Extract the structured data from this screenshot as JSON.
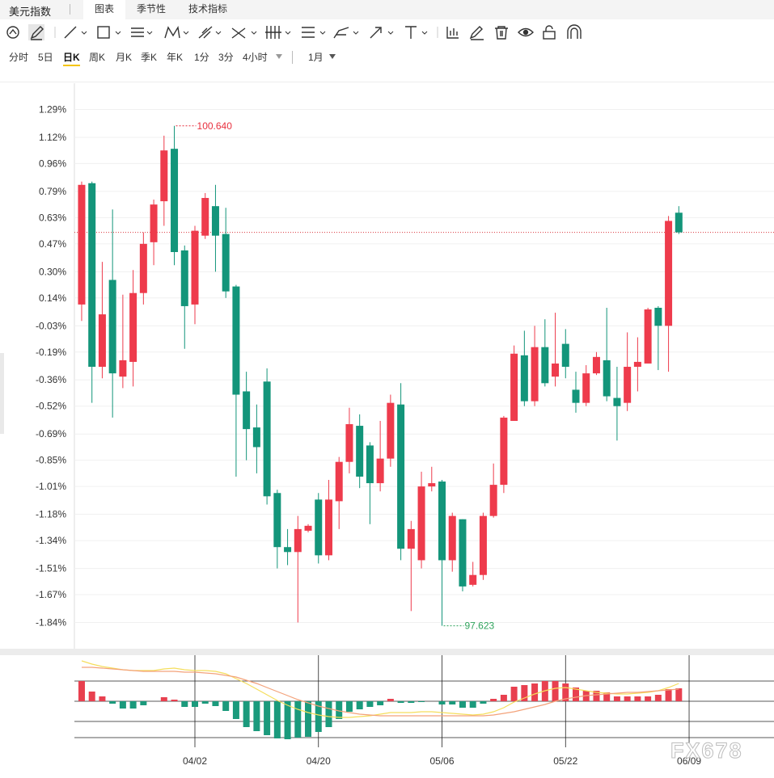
{
  "tabs": {
    "title": "美元指数",
    "items": [
      "图表",
      "季节性",
      "技术指标"
    ],
    "active": 0
  },
  "periods": {
    "items": [
      "分时",
      "5日",
      "日K",
      "周K",
      "月K",
      "季K",
      "年K",
      "1分",
      "3分",
      "4小时"
    ],
    "active": 2,
    "range": "1月"
  },
  "watermark": "FX678",
  "chart_data": [
    {
      "type": "candlestick",
      "categories": [
        null,
        null,
        null,
        null,
        null,
        null,
        null,
        null,
        null,
        null,
        null,
        "04/02",
        null,
        null,
        null,
        null,
        null,
        null,
        null,
        null,
        null,
        null,
        null,
        "04/20",
        null,
        null,
        null,
        null,
        null,
        null,
        null,
        null,
        null,
        null,
        null,
        "05/06",
        null,
        null,
        null,
        null,
        null,
        null,
        null,
        null,
        null,
        null,
        null,
        "05/22",
        null,
        null,
        null,
        null,
        null,
        null,
        null,
        null,
        null,
        null,
        null,
        "06/09"
      ],
      "open": [
        0.1,
        0.84,
        -0.28,
        0.25,
        -0.34,
        -0.25,
        0.17,
        0.48,
        0.73,
        1.05,
        0.43,
        0.1,
        0.52,
        0.7,
        0.53,
        0.21,
        -0.43,
        -0.65,
        -0.37,
        -1.05,
        -1.38,
        -1.41,
        -1.28,
        -1.09,
        -1.43,
        -1.1,
        -0.86,
        -0.64,
        -0.76,
        -0.99,
        -0.84,
        -0.51,
        -1.39,
        -1.46,
        -1.01,
        -0.98,
        -1.46,
        -1.21,
        -1.61,
        -1.55,
        -1.19,
        -1.0,
        -0.61,
        -0.21,
        -0.49,
        -0.16,
        -0.34,
        -0.14,
        -0.42,
        -0.5,
        -0.32,
        -0.24,
        -0.47,
        -0.5,
        -0.28,
        -0.26,
        0.08,
        -0.03,
        0.66,
        null
      ],
      "high": [
        0.85,
        0.85,
        0.36,
        0.68,
        0.16,
        0.31,
        0.54,
        0.74,
        1.13,
        1.19,
        0.46,
        0.58,
        0.78,
        0.83,
        0.69,
        0.22,
        -0.31,
        -0.51,
        -0.29,
        -1.03,
        -1.27,
        -1.19,
        -1.24,
        -1.05,
        -0.97,
        -0.83,
        -0.53,
        -0.57,
        -0.74,
        -0.61,
        -0.45,
        -0.38,
        -1.22,
        -0.92,
        -0.89,
        -0.97,
        -1.17,
        -1.21,
        -1.47,
        -1.17,
        -0.87,
        -0.58,
        -0.15,
        -0.06,
        -0.03,
        0.01,
        0.05,
        -0.05,
        -0.31,
        -0.27,
        -0.19,
        0.08,
        -0.28,
        -0.07,
        -0.1,
        0.08,
        0.09,
        0.64,
        0.7,
        null
      ],
      "low": [
        0.0,
        -0.5,
        -0.35,
        -0.59,
        -0.41,
        -0.4,
        0.1,
        0.34,
        0.58,
        0.34,
        -0.17,
        -0.02,
        0.5,
        0.3,
        0.14,
        -0.95,
        -0.85,
        -0.93,
        -1.12,
        -1.51,
        -1.49,
        -1.84,
        -1.29,
        -1.48,
        -1.46,
        -1.27,
        -0.93,
        -1.02,
        -1.24,
        -1.04,
        -0.89,
        -1.46,
        -1.77,
        -1.51,
        -1.04,
        -1.86,
        -1.53,
        -1.65,
        -1.62,
        -1.58,
        -1.2,
        -1.05,
        -0.61,
        -0.52,
        -0.52,
        -0.4,
        -0.4,
        -0.35,
        -0.56,
        -0.52,
        -0.33,
        -0.49,
        -0.73,
        -0.55,
        -0.43,
        -0.26,
        -0.3,
        -0.31,
        0.53,
        null
      ],
      "close": [
        0.83,
        -0.28,
        0.04,
        -0.32,
        -0.24,
        0.17,
        0.47,
        0.71,
        1.04,
        0.42,
        0.09,
        0.55,
        0.75,
        0.52,
        0.18,
        -0.45,
        -0.66,
        -0.77,
        -1.07,
        -1.38,
        -1.41,
        -1.27,
        -1.25,
        -1.43,
        -1.09,
        -0.86,
        -0.63,
        -0.95,
        -0.99,
        -0.84,
        -0.5,
        -1.39,
        -1.27,
        -1.01,
        -0.99,
        -1.46,
        -1.19,
        -1.62,
        -1.55,
        -1.19,
        -1.0,
        -0.59,
        -0.2,
        -0.49,
        -0.16,
        -0.38,
        -0.26,
        -0.28,
        -0.5,
        -0.32,
        -0.22,
        -0.46,
        -0.52,
        -0.28,
        -0.25,
        0.07,
        -0.03,
        0.61,
        0.54,
        null
      ],
      "up_color": "#ee3b4c",
      "down_color": "#13957a",
      "max_label": "100.640",
      "max_label_color": "#e8313f",
      "min_label": "97.623",
      "min_label_color": "#2fa35c",
      "last_line_color": "#d9363e",
      "ylim": [
        -2.0,
        1.45
      ],
      "yticks": [
        {
          "value": 1.29,
          "label": "1.29%"
        },
        {
          "value": 1.12,
          "label": "1.12%"
        },
        {
          "value": 0.96,
          "label": "0.96%"
        },
        {
          "value": 0.79,
          "label": "0.79%"
        },
        {
          "value": 0.63,
          "label": "0.63%"
        },
        {
          "value": 0.47,
          "label": "0.47%"
        },
        {
          "value": 0.3,
          "label": "0.30%"
        },
        {
          "value": 0.14,
          "label": "0.14%"
        },
        {
          "value": -0.03,
          "label": "-0.03%"
        },
        {
          "value": -0.19,
          "label": "-0.19%"
        },
        {
          "value": -0.36,
          "label": "-0.36%"
        },
        {
          "value": -0.52,
          "label": "-0.52%"
        },
        {
          "value": -0.69,
          "label": "-0.69%"
        },
        {
          "value": -0.85,
          "label": "-0.85%"
        },
        {
          "value": -1.01,
          "label": "-1.01%"
        },
        {
          "value": -1.18,
          "label": "-1.18%"
        },
        {
          "value": -1.34,
          "label": "-1.34%"
        },
        {
          "value": -1.51,
          "label": "-1.51%"
        },
        {
          "value": -1.67,
          "label": "-1.67%"
        },
        {
          "value": -1.84,
          "label": "-1.84%"
        }
      ],
      "grid": true
    },
    {
      "type": "macd",
      "histogram": {
        "values": [
          0.25,
          0.12,
          0.06,
          -0.03,
          -0.09,
          -0.09,
          -0.05,
          0.0,
          0.05,
          0.02,
          -0.07,
          -0.07,
          -0.03,
          -0.06,
          -0.12,
          -0.22,
          -0.32,
          -0.37,
          -0.42,
          -0.46,
          -0.47,
          -0.45,
          -0.44,
          -0.38,
          -0.32,
          -0.22,
          -0.13,
          -0.1,
          -0.07,
          -0.05,
          0.03,
          -0.02,
          -0.02,
          -0.01,
          0.0,
          -0.04,
          -0.04,
          -0.08,
          -0.08,
          -0.03,
          0.03,
          0.08,
          0.18,
          0.2,
          0.22,
          0.25,
          0.25,
          0.22,
          0.17,
          0.13,
          0.13,
          0.11,
          0.06,
          0.06,
          0.06,
          0.06,
          0.08,
          0.15,
          0.16,
          null
        ],
        "up_color": "#e8404f",
        "down_color": "#1b9a7c"
      },
      "lines": [
        {
          "color": "#f5de5c",
          "values": [
            0.5,
            0.46,
            0.43,
            0.41,
            0.39,
            0.38,
            0.38,
            0.38,
            0.4,
            0.41,
            0.39,
            0.38,
            0.38,
            0.37,
            0.34,
            0.28,
            0.22,
            0.15,
            0.08,
            0.01,
            -0.05,
            -0.1,
            -0.14,
            -0.17,
            -0.19,
            -0.2,
            -0.2,
            -0.19,
            -0.18,
            -0.16,
            -0.14,
            -0.14,
            -0.14,
            -0.13,
            -0.13,
            -0.14,
            -0.15,
            -0.16,
            -0.17,
            -0.16,
            -0.13,
            -0.08,
            -0.01,
            0.04,
            0.09,
            0.13,
            0.16,
            0.17,
            0.15,
            0.13,
            0.11,
            0.1,
            0.09,
            0.09,
            0.1,
            0.11,
            0.13,
            0.17,
            0.22,
            null
          ]
        },
        {
          "color": "#f3a27a",
          "values": [
            0.42,
            0.42,
            0.41,
            0.4,
            0.39,
            0.38,
            0.37,
            0.37,
            0.37,
            0.37,
            0.36,
            0.36,
            0.35,
            0.34,
            0.32,
            0.3,
            0.26,
            0.22,
            0.17,
            0.12,
            0.07,
            0.02,
            -0.02,
            -0.06,
            -0.09,
            -0.12,
            -0.14,
            -0.16,
            -0.17,
            -0.18,
            -0.18,
            -0.18,
            -0.18,
            -0.18,
            -0.18,
            -0.18,
            -0.18,
            -0.18,
            -0.18,
            -0.18,
            -0.17,
            -0.15,
            -0.13,
            -0.1,
            -0.07,
            -0.04,
            0.0,
            0.03,
            0.05,
            0.07,
            0.08,
            0.09,
            0.1,
            0.11,
            0.11,
            0.12,
            0.13,
            0.14,
            0.15,
            null
          ]
        }
      ],
      "ylim": [
        -0.56,
        0.56
      ]
    }
  ]
}
